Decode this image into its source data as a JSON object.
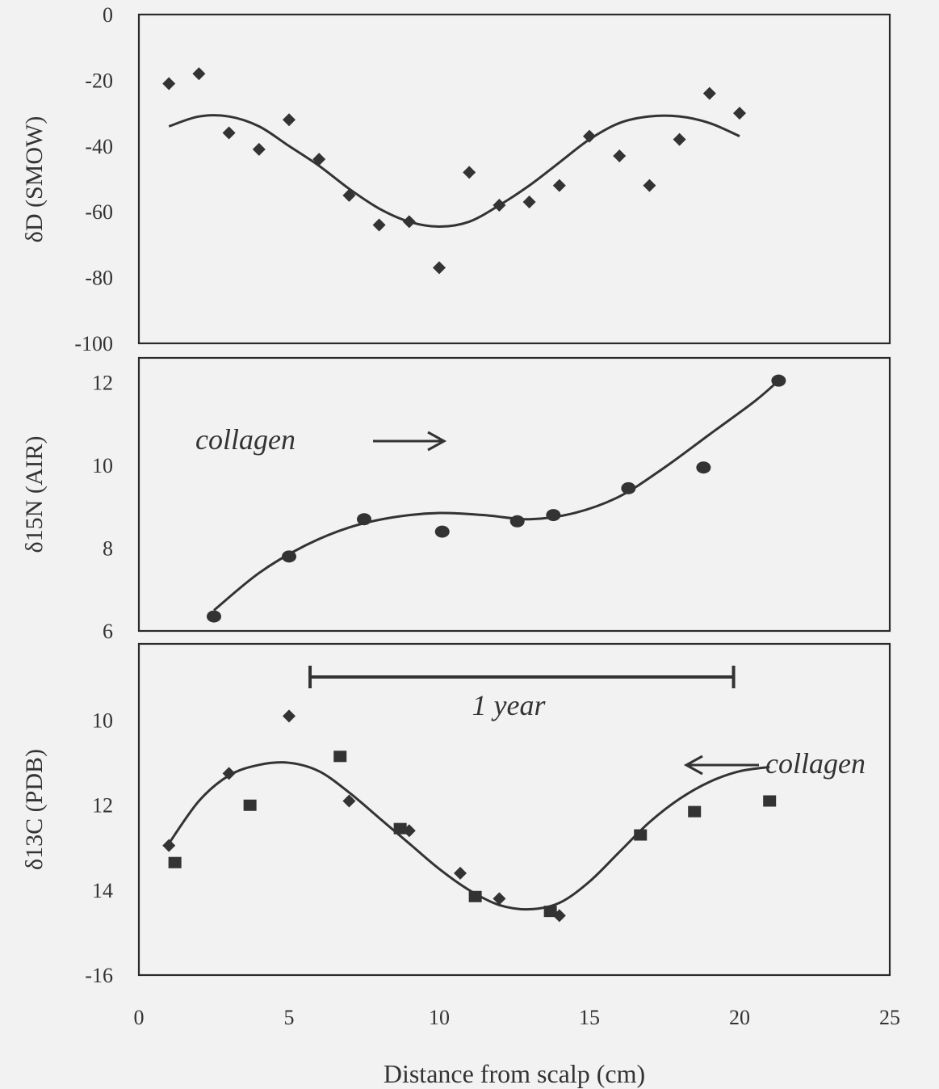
{
  "chart_data": [
    {
      "type": "scatter",
      "panel": "top",
      "ylabel": "δD (SMOW)",
      "ylim": [
        -100,
        0
      ],
      "xlim": [
        0,
        25
      ],
      "yticks": [
        "0",
        "-20",
        "-40",
        "-60",
        "-80",
        "-100"
      ],
      "series": [
        {
          "marker": "diamond",
          "x": [
            1,
            2,
            3,
            4,
            5,
            6,
            7,
            8,
            9,
            10,
            11,
            12,
            13,
            14,
            15,
            16,
            17,
            18,
            19,
            20
          ],
          "y": [
            -21,
            -18,
            -36,
            -41,
            -32,
            -44,
            -55,
            -64,
            -63,
            -77,
            -48,
            -58,
            -57,
            -52,
            -37,
            -43,
            -52,
            -38,
            -24,
            -30
          ]
        }
      ],
      "trend": {
        "x": [
          1,
          2,
          3,
          4,
          5,
          6,
          7,
          8,
          9,
          10,
          11,
          12,
          13,
          14,
          15,
          16,
          17,
          18,
          19,
          20
        ],
        "y": [
          -34,
          -31,
          -31,
          -34,
          -40,
          -46,
          -53,
          -59,
          -63,
          -64.5,
          -63,
          -58,
          -52,
          -45,
          -38,
          -33,
          -31,
          -31,
          -33,
          -37
        ]
      }
    },
    {
      "type": "scatter",
      "panel": "middle",
      "ylabel": "δ15N (AIR)",
      "ylim": [
        6,
        12.6
      ],
      "xlim": [
        0,
        25
      ],
      "yticks": [
        "12",
        "10",
        "8",
        "6"
      ],
      "series": [
        {
          "marker": "circle",
          "x": [
            2.5,
            5,
            7.5,
            10.1,
            12.6,
            13.8,
            16.3,
            18.8,
            21.3
          ],
          "y": [
            6.35,
            7.8,
            8.7,
            8.4,
            8.65,
            8.8,
            9.45,
            9.95,
            12.05
          ]
        }
      ],
      "trend": {
        "x": [
          2.5,
          4,
          5.5,
          7,
          8.5,
          10,
          11.5,
          13,
          14.5,
          16,
          17.5,
          19,
          20.5,
          21.3
        ],
        "y": [
          6.5,
          7.4,
          8.05,
          8.5,
          8.75,
          8.85,
          8.8,
          8.7,
          8.85,
          9.25,
          9.95,
          10.75,
          11.55,
          12.05
        ]
      },
      "annotations": [
        {
          "text": "collagen",
          "arrow": "right"
        }
      ]
    },
    {
      "type": "scatter",
      "panel": "bottom",
      "ylabel": "δ13C (PDB)",
      "xlabel": "Distance from scalp (cm)",
      "ylim": [
        16,
        8.2
      ],
      "xlim": [
        0,
        25
      ],
      "yticks": [
        "10",
        "12",
        "14",
        "-16"
      ],
      "xticks": [
        "0",
        "5",
        "10",
        "15",
        "20",
        "25"
      ],
      "series": [
        {
          "marker": "diamond",
          "x": [
            1,
            3,
            5,
            7,
            9,
            10.7,
            12,
            14
          ],
          "y": [
            12.95,
            11.25,
            9.9,
            11.9,
            12.6,
            13.6,
            14.2,
            14.6
          ]
        },
        {
          "marker": "square",
          "x": [
            1.2,
            3.7,
            6.7,
            8.7,
            11.2,
            13.7,
            16.7,
            18.5,
            21
          ],
          "y": [
            13.35,
            12,
            10.85,
            12.55,
            14.15,
            14.5,
            12.7,
            12.15,
            11.9
          ]
        }
      ],
      "trend": {
        "x": [
          1,
          2,
          3,
          4,
          5,
          6,
          7,
          8,
          9,
          10,
          11,
          12,
          13,
          14,
          15,
          16,
          17,
          18,
          19,
          20,
          21
        ],
        "y": [
          12.9,
          11.9,
          11.3,
          11.05,
          11.0,
          11.2,
          11.7,
          12.3,
          12.9,
          13.5,
          14.0,
          14.35,
          14.45,
          14.3,
          13.8,
          13.1,
          12.4,
          11.85,
          11.45,
          11.2,
          11.1
        ]
      },
      "annotations": [
        {
          "text": "1 year",
          "span": [
            5.7,
            19.8
          ]
        },
        {
          "text": "collagen",
          "arrow": "left"
        }
      ]
    }
  ]
}
